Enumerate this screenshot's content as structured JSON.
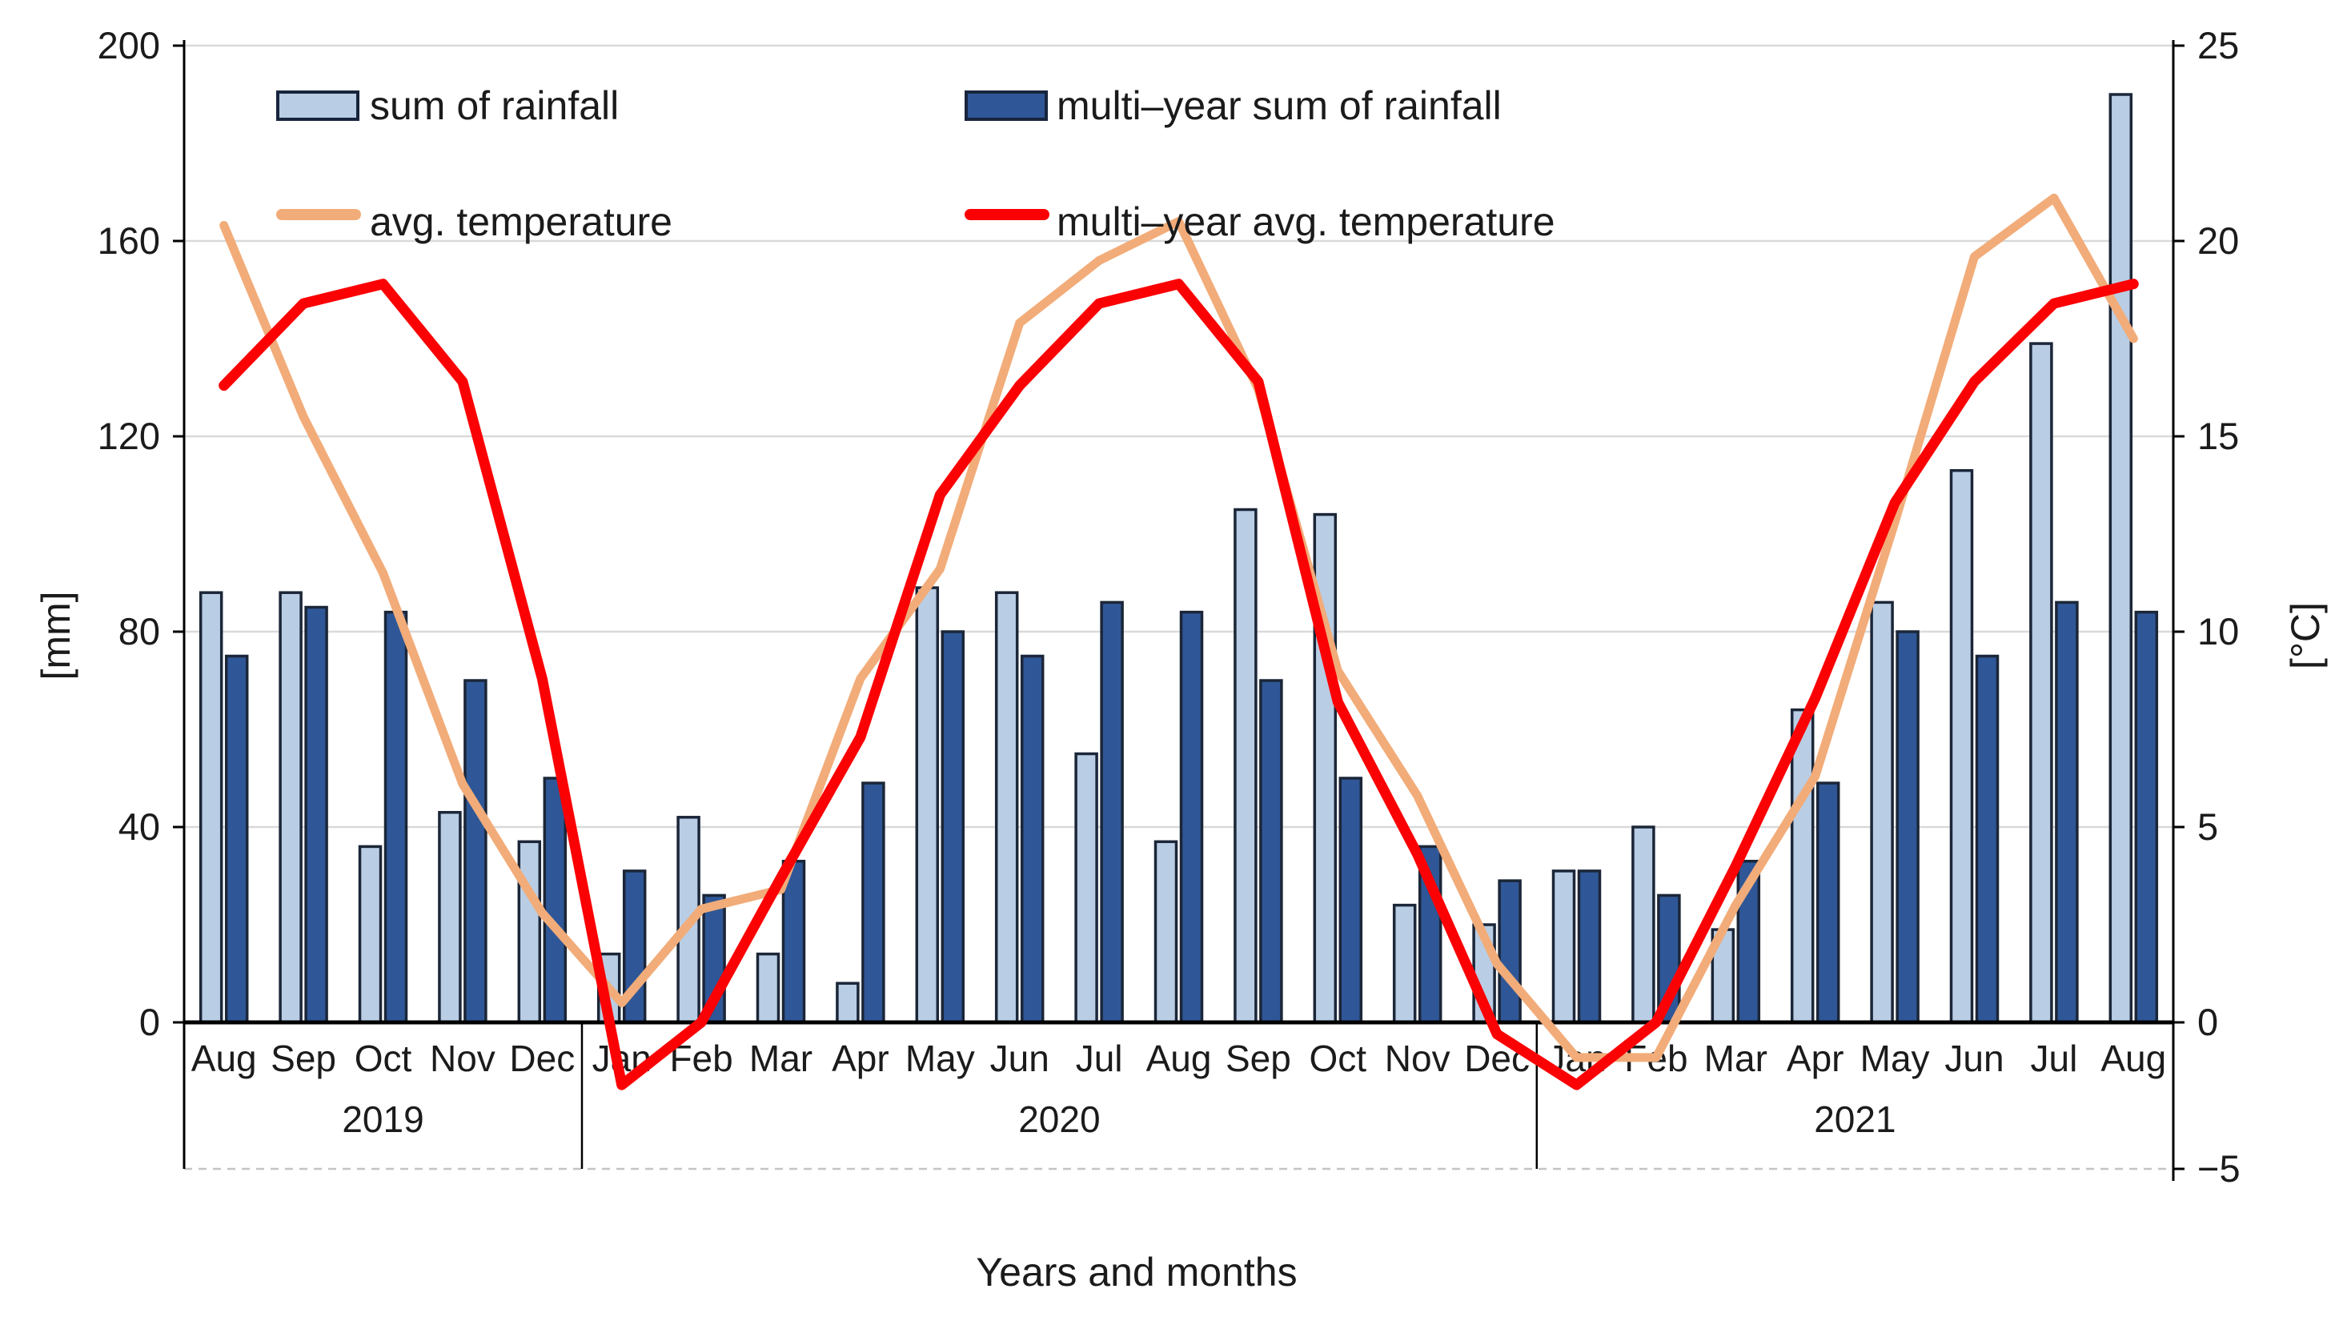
{
  "chart_data": {
    "type": "bar",
    "subtype": "combo-bar-line-dual-axis",
    "title": "",
    "xlabel": "Years and months",
    "ylabel_left": "[mm]",
    "ylabel_right": "[°C]",
    "grid": true,
    "legend_position": "two columns, top inside plot area",
    "months": [
      {
        "m": "Aug",
        "y": "2019"
      },
      {
        "m": "Sep",
        "y": "2019"
      },
      {
        "m": "Oct",
        "y": "2019"
      },
      {
        "m": "Nov",
        "y": "2019"
      },
      {
        "m": "Dec",
        "y": "2019"
      },
      {
        "m": "Jan",
        "y": "2020"
      },
      {
        "m": "Feb",
        "y": "2020"
      },
      {
        "m": "Mar",
        "y": "2020"
      },
      {
        "m": "Apr",
        "y": "2020"
      },
      {
        "m": "May",
        "y": "2020"
      },
      {
        "m": "Jun",
        "y": "2020"
      },
      {
        "m": "Jul",
        "y": "2020"
      },
      {
        "m": "Aug",
        "y": "2020"
      },
      {
        "m": "Sep",
        "y": "2020"
      },
      {
        "m": "Oct",
        "y": "2020"
      },
      {
        "m": "Nov",
        "y": "2020"
      },
      {
        "m": "Dec",
        "y": "2020"
      },
      {
        "m": "Jan",
        "y": "2021"
      },
      {
        "m": "Feb",
        "y": "2021"
      },
      {
        "m": "Mar",
        "y": "2021"
      },
      {
        "m": "Apr",
        "y": "2021"
      },
      {
        "m": "May",
        "y": "2021"
      },
      {
        "m": "Jun",
        "y": "2021"
      },
      {
        "m": "Jul",
        "y": "2021"
      },
      {
        "m": "Aug",
        "y": "2021"
      }
    ],
    "series": [
      {
        "name": "sum of rainfall",
        "type": "bar",
        "axis": "left",
        "unit": "mm",
        "values": [
          88,
          88,
          36,
          43,
          37,
          14,
          42,
          14,
          8,
          89,
          88,
          55,
          37,
          105,
          104,
          24,
          20,
          31,
          40,
          19,
          64,
          86,
          113,
          139,
          190
        ]
      },
      {
        "name": "multi–year sum of rainfall",
        "type": "bar",
        "axis": "left",
        "unit": "mm",
        "values": [
          75,
          85,
          84,
          70,
          50,
          31,
          26,
          33,
          49,
          80,
          75,
          86,
          84,
          70,
          50,
          36,
          29,
          31,
          26,
          33,
          49,
          80,
          75,
          86,
          84
        ]
      },
      {
        "name": "avg. temperature",
        "type": "line",
        "axis": "right",
        "unit": "°C",
        "values": [
          20.4,
          15.5,
          11.5,
          6.1,
          2.8,
          0.5,
          2.9,
          3.4,
          8.8,
          11.6,
          17.9,
          19.5,
          20.5,
          16.2,
          9.0,
          5.8,
          1.5,
          -0.9,
          -0.9,
          3.0,
          6.3,
          12.8,
          19.6,
          21.1,
          17.5
        ]
      },
      {
        "name": "multi–year avg. temperature",
        "type": "line",
        "axis": "right",
        "unit": "°C",
        "values": [
          16.3,
          18.4,
          18.9,
          16.4,
          8.8,
          -1.6,
          0.0,
          3.7,
          7.3,
          13.5,
          16.3,
          18.4,
          18.9,
          16.4,
          8.2,
          4.3,
          -0.3,
          -1.6,
          0.0,
          4.0,
          8.3,
          13.3,
          16.4,
          18.4,
          18.9
        ]
      }
    ],
    "left_axis": {
      "label": "[mm]",
      "min": 0,
      "max": 200,
      "ticks": [
        0,
        40,
        80,
        120,
        160,
        200
      ]
    },
    "right_axis": {
      "label": "[°C]",
      "min": -5,
      "max": 25,
      "ticks": [
        25,
        20,
        15,
        10,
        5,
        0,
        -5
      ]
    },
    "year_groups": [
      {
        "year": "2019",
        "count": 5
      },
      {
        "year": "2020",
        "count": 12
      },
      {
        "year": "2021",
        "count": 8
      }
    ]
  },
  "legend": {
    "item1": "sum of rainfall",
    "item2": "multi–year sum of rainfall",
    "item3": "avg. temperature",
    "item4": "multi–year avg. temperature"
  },
  "colors": {
    "bar_light": "#b9cde4",
    "bar_dark": "#2f5797",
    "bar_border": "#1b2638",
    "line_orange": "#f2ac79",
    "line_red": "#fb0104",
    "grid": "#d9d9d9",
    "grid_dashed": "#c4c4c4",
    "axis": "#000000",
    "text": "#1b1b1b"
  }
}
